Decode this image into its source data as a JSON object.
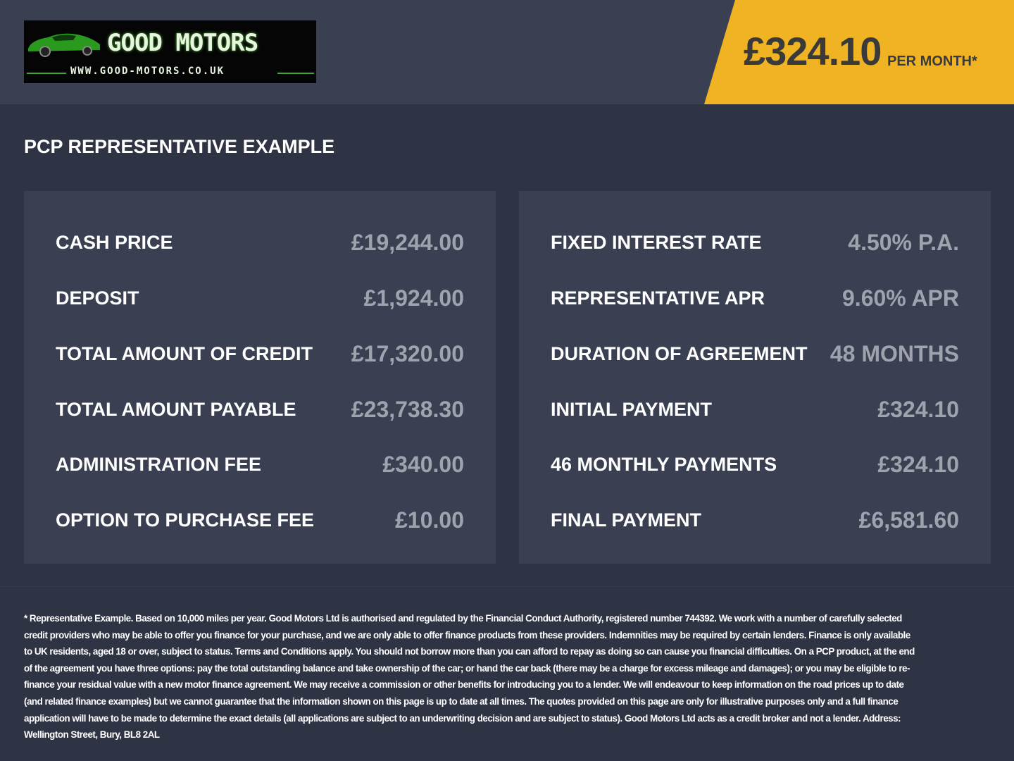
{
  "header": {
    "logo": {
      "brand": "GOOD MOTORS",
      "url": "WWW.GOOD-MOTORS.CO.UK"
    },
    "price_badge": {
      "amount": "£324.10",
      "suffix": "PER MONTH*",
      "color": "#f0b323"
    }
  },
  "section_title": "PCP REPRESENTATIVE EXAMPLE",
  "left_panel": [
    {
      "label": "CASH PRICE",
      "value": "£19,244.00"
    },
    {
      "label": "DEPOSIT",
      "value": "£1,924.00"
    },
    {
      "label": "TOTAL AMOUNT OF CREDIT",
      "value": "£17,320.00"
    },
    {
      "label": "TOTAL AMOUNT PAYABLE",
      "value": "£23,738.30"
    },
    {
      "label": "ADMINISTRATION FEE",
      "value": "£340.00"
    },
    {
      "label": "OPTION TO PURCHASE FEE",
      "value": "£10.00"
    }
  ],
  "right_panel": [
    {
      "label": "FIXED INTEREST RATE",
      "value": "4.50% P.A."
    },
    {
      "label": "REPRESENTATIVE APR",
      "value": "9.60% APR"
    },
    {
      "label": "DURATION OF AGREEMENT",
      "value": "48 MONTHS"
    },
    {
      "label": "INITIAL PAYMENT",
      "value": "£324.10"
    },
    {
      "label": "46 MONTHLY PAYMENTS",
      "value": "£324.10"
    },
    {
      "label": "FINAL PAYMENT",
      "value": "£6,581.60"
    }
  ],
  "disclaimer": "* Representative Example. Based on 10,000 miles per year. Good Motors Ltd is authorised and regulated by the Financial Conduct Authority, registered number 744392. We work with a number of carefully selected credit providers who may be able to offer you finance for your purchase, and we are only able to offer finance products from these providers. Indemnities may be required by certain lenders. Finance is only available to UK residents, aged 18 or over, subject to status. Terms and Conditions apply. You should not borrow more than you can afford to repay as doing so can cause you financial difficulties. On a PCP product, at the end of the agreement you have three options: pay the total outstanding balance and take ownership of the car; or hand the car back (there may be a charge for excess mileage and damages); or you may be eligible to re-finance your residual value with a new motor finance agreement. We may receive a commission or other benefits for introducing you to a lender. We will endeavour to keep information on the road prices up to date (and related finance examples) but we cannot guarantee that the information shown on this page is up to date at all times. The quotes provided on this page are only for illustrative purposes only and a full finance application will have to be made to determine the exact details (all applications are subject to an underwriting decision and are subject to status). Good Motors Ltd acts as a credit broker and not a lender. Address: Wellington Street, Bury, BL8 2AL"
}
